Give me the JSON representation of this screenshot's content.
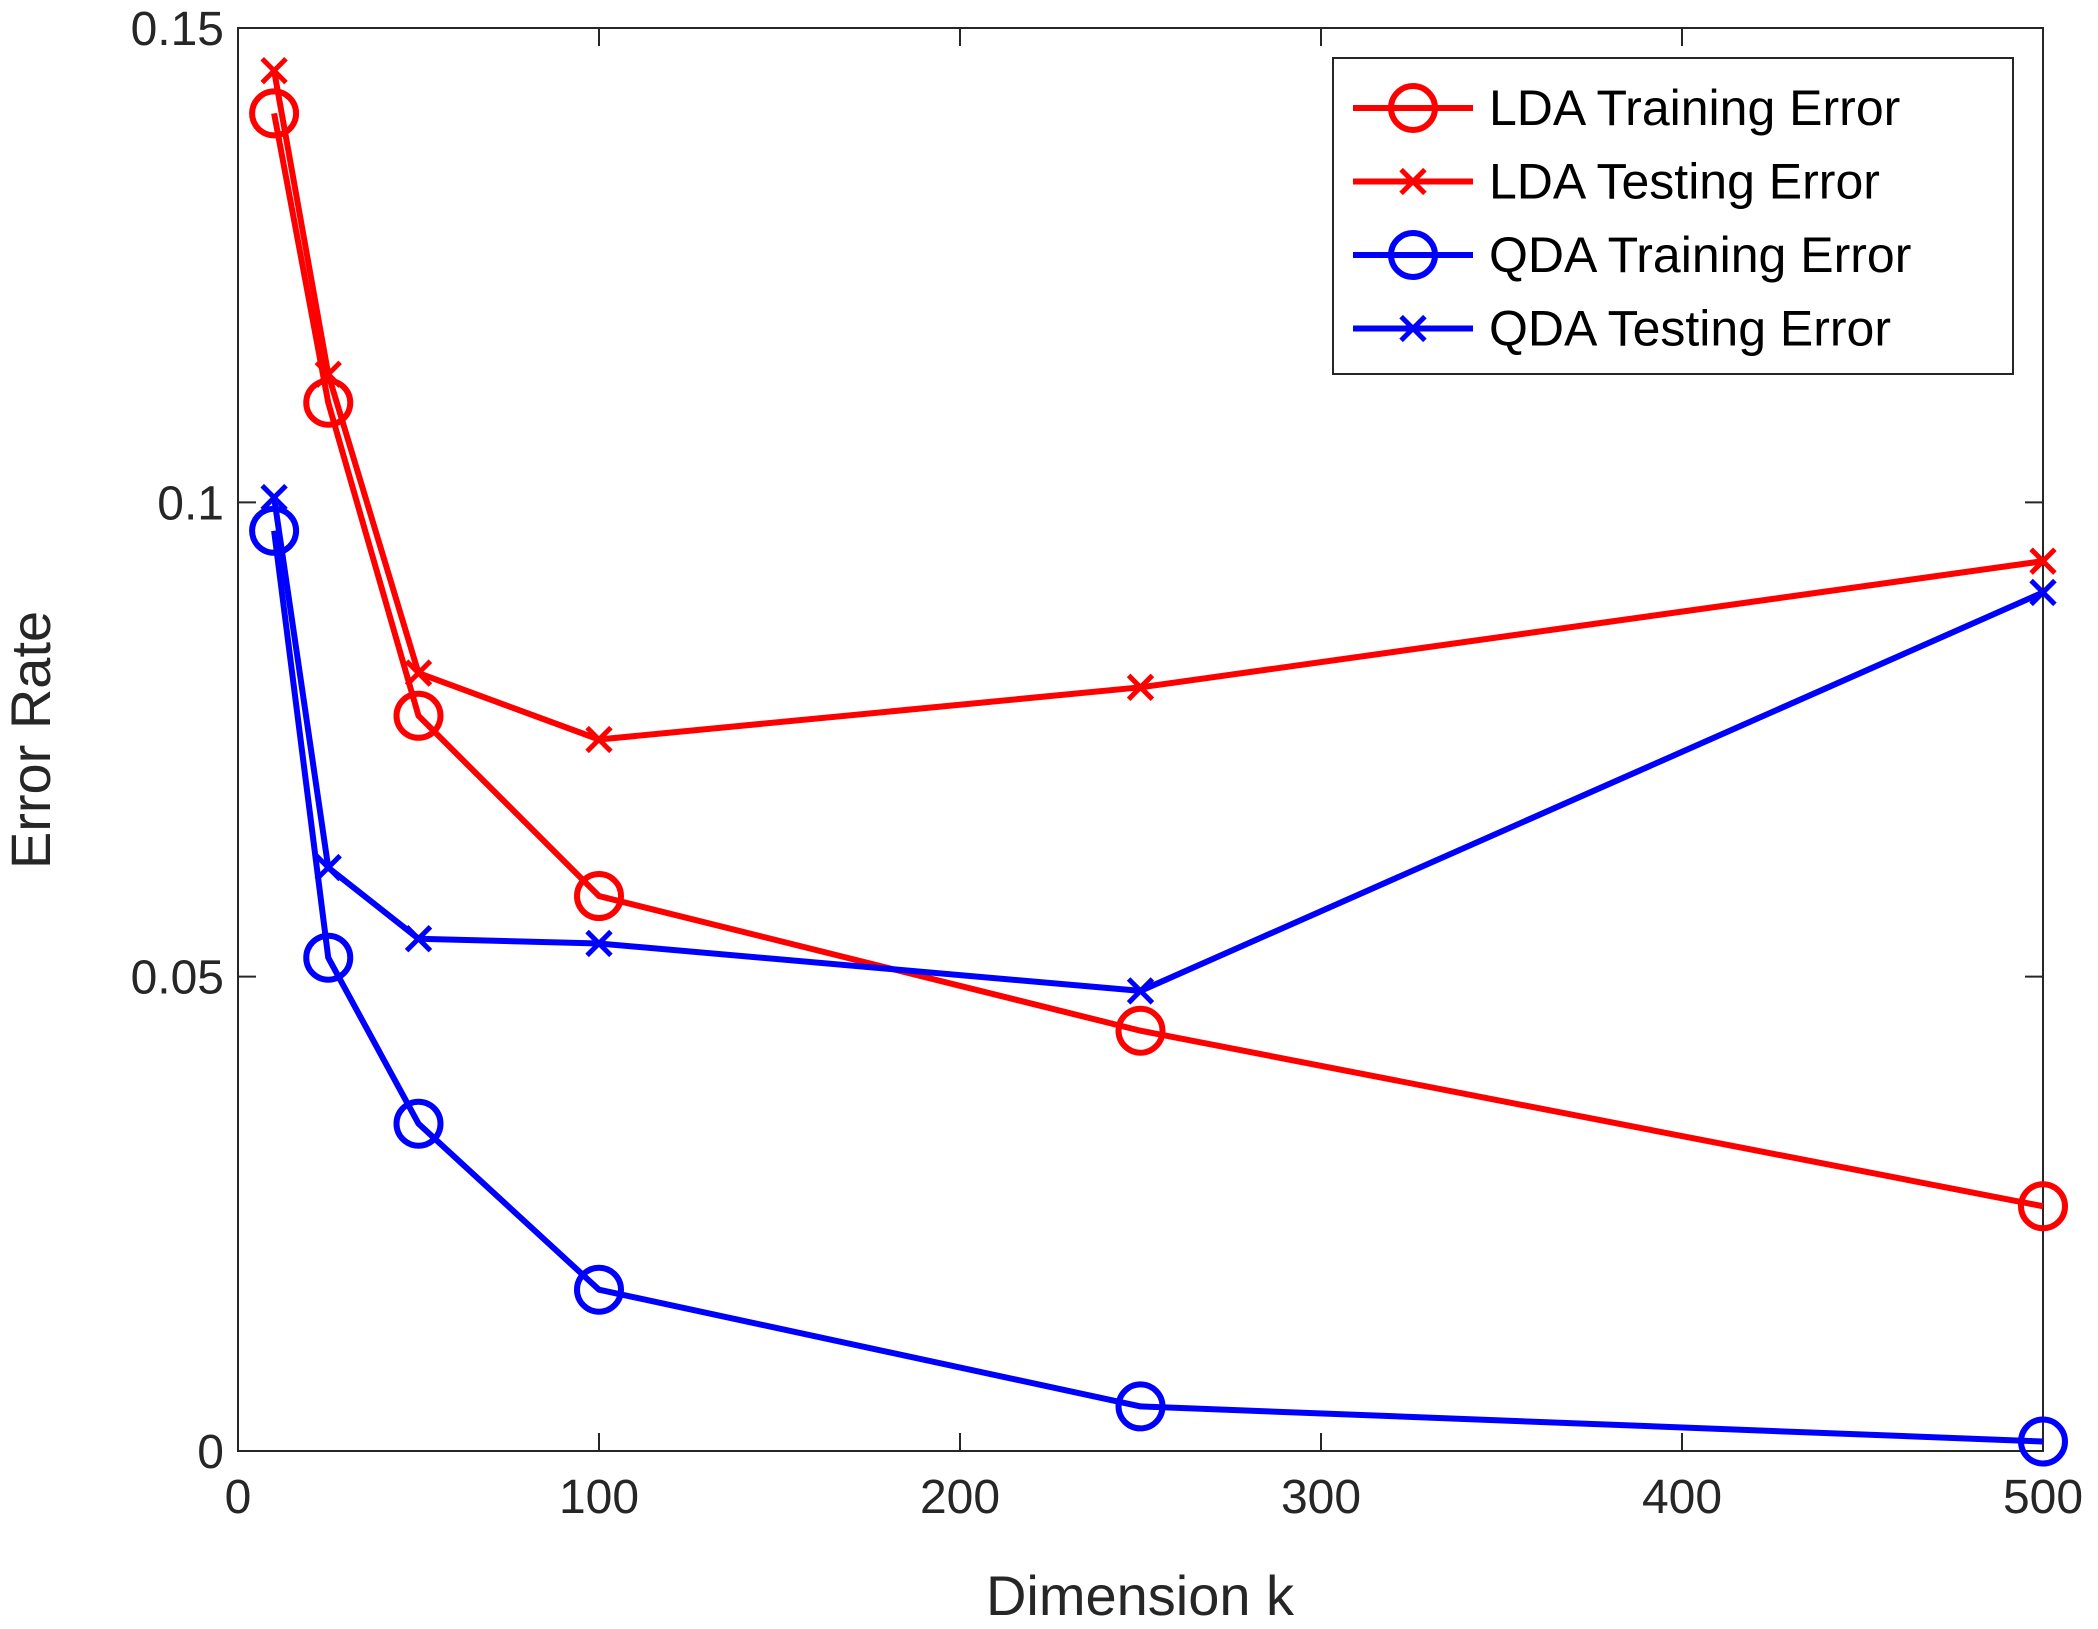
{
  "chart_data": {
    "type": "line",
    "xlabel": "Dimension k",
    "ylabel": "Error Rate",
    "xlim": [
      0,
      500
    ],
    "ylim": [
      0,
      0.15
    ],
    "xticks": [
      0,
      100,
      200,
      300,
      400,
      500
    ],
    "xtick_labels": [
      "0",
      "100",
      "200",
      "300",
      "400",
      "500"
    ],
    "yticks": [
      0,
      0.05,
      0.1,
      0.15
    ],
    "ytick_labels": [
      "0",
      "0.05",
      "0.1",
      "0.15"
    ],
    "grid": false,
    "legend_position": "top-right",
    "x": [
      10,
      25,
      50,
      100,
      250,
      500
    ],
    "series": [
      {
        "name": "LDA Training Error",
        "color": "#ff0000",
        "marker": "circle",
        "values": [
          0.141,
          0.1105,
          0.0775,
          0.0585,
          0.0443,
          0.0258
        ]
      },
      {
        "name": "LDA Testing Error",
        "color": "#ff0000",
        "marker": "x",
        "values": [
          0.1455,
          0.1135,
          0.082,
          0.075,
          0.0805,
          0.0938
        ]
      },
      {
        "name": "QDA Training Error",
        "color": "#0000ff",
        "marker": "circle",
        "values": [
          0.097,
          0.052,
          0.0345,
          0.017,
          0.0047,
          0.001
        ]
      },
      {
        "name": "QDA Testing Error",
        "color": "#0000ff",
        "marker": "x",
        "values": [
          0.1005,
          0.0615,
          0.054,
          0.0535,
          0.0485,
          0.0905
        ]
      }
    ]
  }
}
